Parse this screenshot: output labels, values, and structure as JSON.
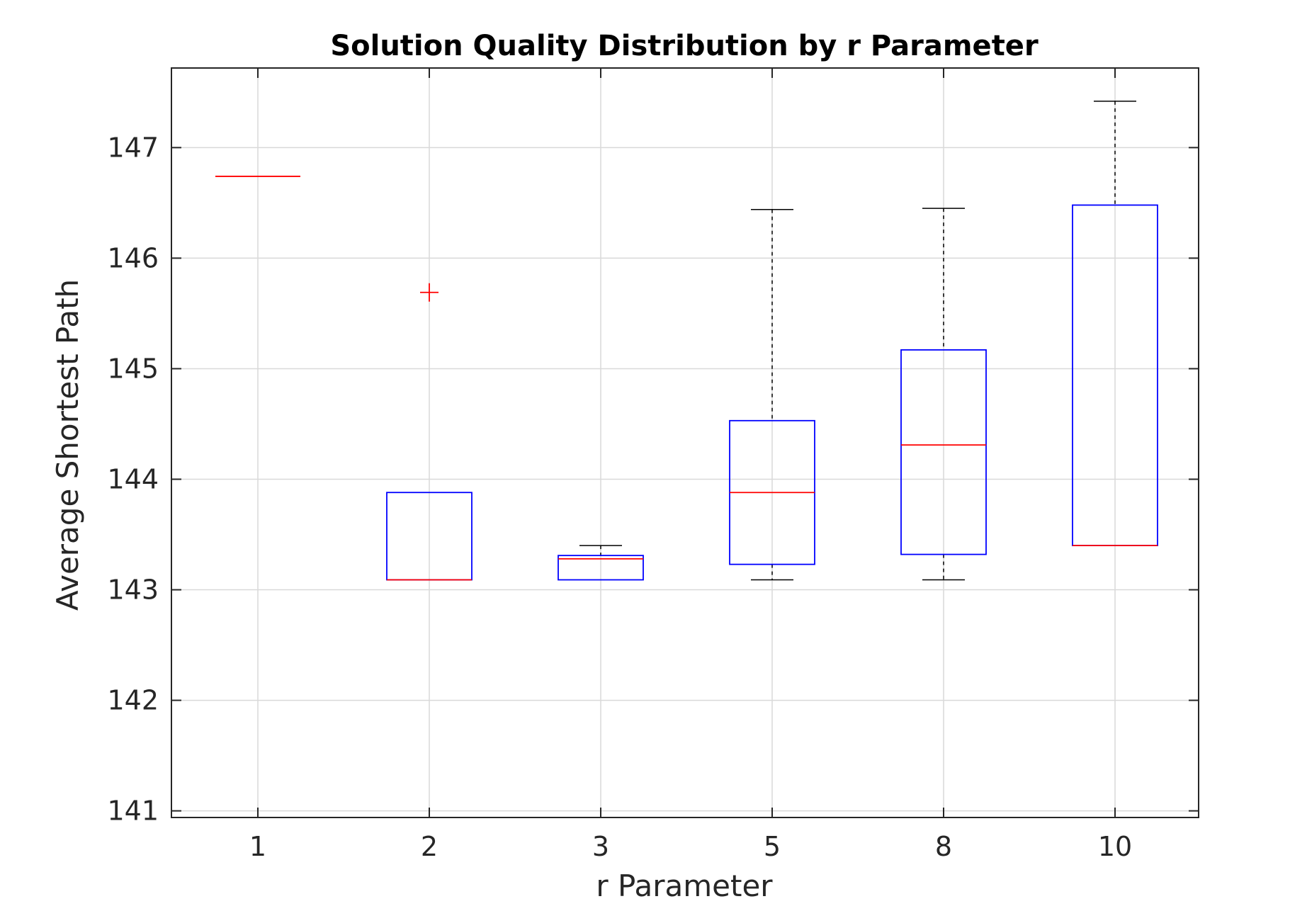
{
  "chart_data": {
    "type": "box",
    "title": "Solution Quality Distribution by r Parameter",
    "xlabel": "r Parameter",
    "ylabel": "Average Shortest Path",
    "categories": [
      "1",
      "2",
      "3",
      "5",
      "8",
      "10"
    ],
    "ylim": [
      140.94,
      147.72
    ],
    "yticks": [
      141,
      142,
      143,
      144,
      145,
      146,
      147
    ],
    "grid": true,
    "colors": {
      "box": "#0000ff",
      "median": "#ff0000",
      "whisker": "#000000",
      "outlier": "#ff0000",
      "grid": "#d9d9d9",
      "axes": "#262626"
    },
    "boxes": [
      {
        "category": "1",
        "min": 146.74,
        "q1": 146.74,
        "median": 146.74,
        "q3": 146.74,
        "max": 146.74,
        "outliers": []
      },
      {
        "category": "2",
        "min": 143.09,
        "q1": 143.09,
        "median": 143.09,
        "q3": 143.88,
        "max": 143.88,
        "outliers": [
          145.69
        ]
      },
      {
        "category": "3",
        "min": 143.09,
        "q1": 143.09,
        "median": 143.28,
        "q3": 143.31,
        "max": 143.4,
        "outliers": []
      },
      {
        "category": "5",
        "min": 143.09,
        "q1": 143.23,
        "median": 143.88,
        "q3": 144.53,
        "max": 146.44,
        "outliers": []
      },
      {
        "category": "8",
        "min": 143.09,
        "q1": 143.32,
        "median": 144.31,
        "q3": 145.17,
        "max": 146.45,
        "outliers": []
      },
      {
        "category": "10",
        "min": 143.4,
        "q1": 143.4,
        "median": 143.4,
        "q3": 146.48,
        "max": 147.42,
        "outliers": []
      }
    ]
  }
}
